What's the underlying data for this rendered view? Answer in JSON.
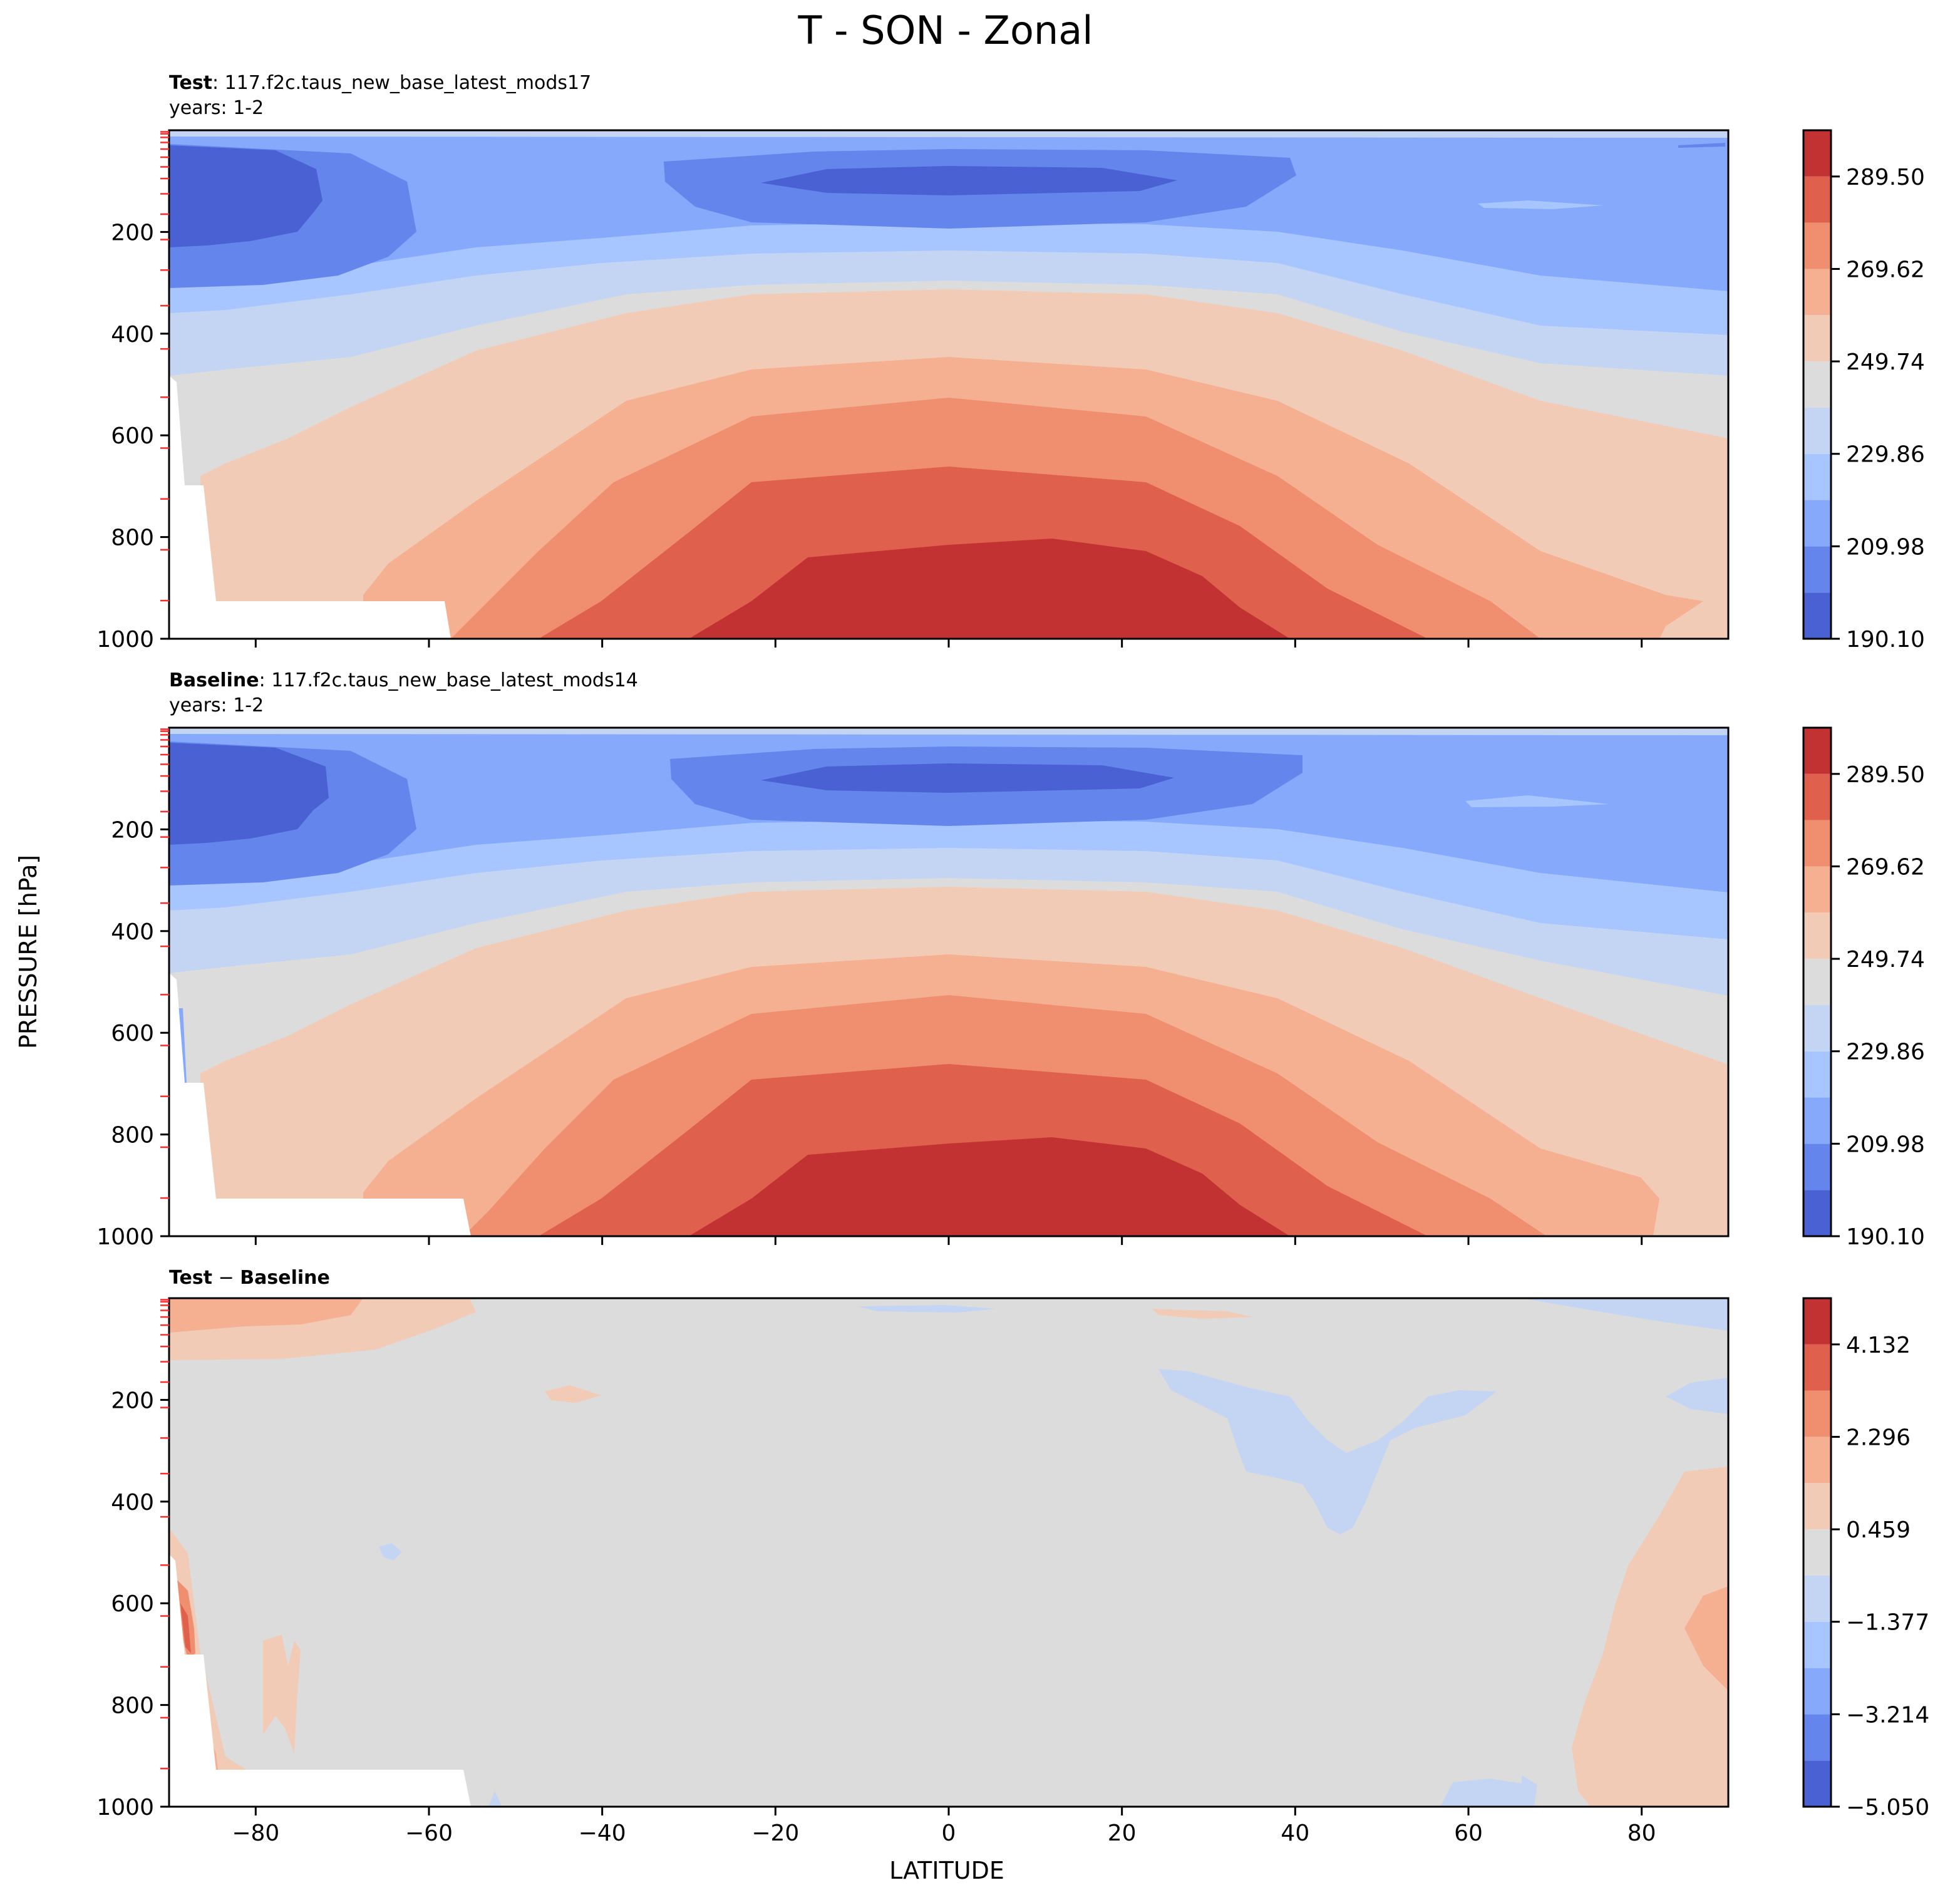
{
  "figure": {
    "title": "T - SON - Zonal",
    "ylabel": "PRESSURE [hPa]",
    "xlabel": "LATITUDE"
  },
  "chart_data": [
    {
      "type": "heatmap",
      "panel": "test",
      "label_bold": "Test",
      "label_rest": ": 117.f2c.taus_new_base_latest_mods17",
      "years": "years: 1-2",
      "xlim": [
        -90,
        90
      ],
      "ylim": [
        1000,
        0
      ],
      "x_ticks": [
        -80,
        -60,
        -40,
        -20,
        0,
        20,
        40,
        60,
        80
      ],
      "x_ticklabels_shown": false,
      "y_ticks": [
        200,
        400,
        600,
        800,
        1000
      ],
      "y_ticklabels": [
        "200",
        "400",
        "600",
        "800",
        "1000"
      ],
      "colormap": "coolwarm",
      "colorbar_levels": [
        190.1,
        200.04,
        209.98,
        219.92,
        229.86,
        239.8,
        249.74,
        259.68,
        269.62,
        279.56,
        289.5,
        299.44
      ],
      "colorbar_ticklabels": [
        "190.10",
        "209.98",
        "229.86",
        "249.74",
        "269.62",
        "289.50"
      ],
      "colors": [
        "#4961d2",
        "#6485ec",
        "#86a9fc",
        "#a7c5fe",
        "#c4d5f3",
        "#dddcdc",
        "#f2cbb7",
        "#f5b092",
        "#f08f70",
        "#de604d",
        "#c33232"
      ]
    },
    {
      "type": "heatmap",
      "panel": "baseline",
      "label_bold": "Baseline",
      "label_rest": ": 117.f2c.taus_new_base_latest_mods14",
      "years": "years: 1-2",
      "xlim": [
        -90,
        90
      ],
      "ylim": [
        1000,
        0
      ],
      "x_ticks": [
        -80,
        -60,
        -40,
        -20,
        0,
        20,
        40,
        60,
        80
      ],
      "x_ticklabels_shown": false,
      "y_ticks": [
        200,
        400,
        600,
        800,
        1000
      ],
      "y_ticklabels": [
        "200",
        "400",
        "600",
        "800",
        "1000"
      ],
      "colormap": "coolwarm",
      "colorbar_levels": [
        190.1,
        200.04,
        209.98,
        219.92,
        229.86,
        239.8,
        249.74,
        259.68,
        269.62,
        279.56,
        289.5,
        299.44
      ],
      "colorbar_ticklabels": [
        "190.10",
        "209.98",
        "229.86",
        "249.74",
        "269.62",
        "289.50"
      ],
      "colors": [
        "#4961d2",
        "#6485ec",
        "#86a9fc",
        "#a7c5fe",
        "#c4d5f3",
        "#dddcdc",
        "#f2cbb7",
        "#f5b092",
        "#f08f70",
        "#de604d",
        "#c33232"
      ]
    },
    {
      "type": "heatmap",
      "panel": "diff",
      "label_bold": "Test",
      "label_mid": " − ",
      "label_bold2": "Baseline",
      "xlim": [
        -90,
        90
      ],
      "ylim": [
        1000,
        0
      ],
      "x_ticks": [
        -80,
        -60,
        -40,
        -20,
        0,
        20,
        40,
        60,
        80
      ],
      "x_ticklabels": [
        "−80",
        "−60",
        "−40",
        "−20",
        "0",
        "20",
        "40",
        "60",
        "80"
      ],
      "y_ticks": [
        200,
        400,
        600,
        800,
        1000
      ],
      "y_ticklabels": [
        "200",
        "400",
        "600",
        "800",
        "1000"
      ],
      "colormap": "coolwarm",
      "colorbar_levels": [
        -5.05,
        -4.132,
        -3.214,
        -2.296,
        -1.377,
        -0.459,
        0.459,
        1.377,
        2.296,
        3.214,
        4.132,
        5.05
      ],
      "colorbar_ticklabels": [
        "−5.050",
        "−3.214",
        "−1.377",
        "0.459",
        "2.296",
        "4.132"
      ],
      "colors": [
        "#4961d2",
        "#6485ec",
        "#86a9fc",
        "#a7c5fe",
        "#c4d5f3",
        "#dddcdc",
        "#f2cbb7",
        "#f5b092",
        "#f08f70",
        "#de604d",
        "#c33232"
      ]
    }
  ]
}
